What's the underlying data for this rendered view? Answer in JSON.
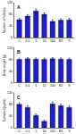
{
  "chart_data": [
    {
      "type": "bar",
      "title": "A",
      "y_label": "Number of follicles",
      "categories": [
        "C",
        "0.1",
        "1",
        "10",
        "100",
        "E2",
        "V"
      ],
      "values": [
        62,
        74,
        92,
        80,
        56,
        60,
        61
      ],
      "errors": [
        5,
        5,
        6,
        5,
        5,
        5,
        5
      ],
      "color": "#1f1fd0",
      "ylim": [
        0,
        120
      ],
      "yticks": [
        0,
        40,
        80,
        120
      ],
      "grid": false
    },
    {
      "type": "bar",
      "title": "B",
      "y_label": "Body weight (g)",
      "categories": [
        "C",
        "0.1",
        "1",
        "10",
        "100",
        "E2",
        "V"
      ],
      "values": [
        80,
        82,
        81,
        80,
        82,
        81,
        80
      ],
      "errors": [
        4,
        4,
        4,
        4,
        4,
        4,
        4
      ],
      "color": "#1f1fd0",
      "ylim": [
        0,
        120
      ],
      "yticks": [
        0,
        40,
        80,
        120
      ],
      "grid": false
    },
    {
      "type": "bar",
      "title": "C",
      "y_label": "Estradiol (pg/ml)",
      "categories": [
        "C",
        "0.1",
        "1",
        "10",
        "100",
        "E2",
        "V"
      ],
      "values": [
        80,
        70,
        42,
        22,
        82,
        76,
        70
      ],
      "errors": [
        6,
        6,
        5,
        4,
        6,
        6,
        6
      ],
      "color": "#1f1fd0",
      "ylim": [
        0,
        120
      ],
      "yticks": [
        0,
        40,
        80,
        120
      ],
      "grid": false
    }
  ]
}
